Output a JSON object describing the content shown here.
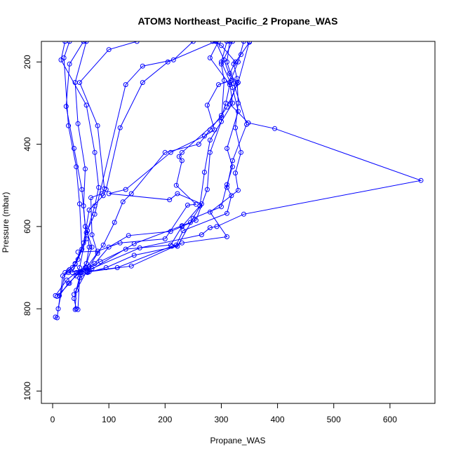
{
  "chart_data": {
    "type": "line",
    "title": "ATOM3 Northeast_Pacific_2 Propane_WAS",
    "xlabel": "Propane_WAS",
    "ylabel": "Pressure (mbar)",
    "xlim": [
      -20,
      680
    ],
    "ylim": [
      1030,
      150
    ],
    "y_reversed": true,
    "x_ticks": [
      0,
      100,
      200,
      300,
      400,
      500,
      600
    ],
    "y_ticks": [
      200,
      400,
      600,
      800,
      1000
    ],
    "grid": false,
    "legend": "none",
    "colors": {
      "series": "#0000ff",
      "axes": "#000000"
    },
    "series": [
      {
        "points": [
          [
            5,
            820
          ],
          [
            8,
            822
          ],
          [
            18,
            720
          ],
          [
            28,
            708
          ],
          [
            35,
            700
          ],
          [
            45,
            680
          ],
          [
            60,
            630
          ],
          [
            55,
            550
          ],
          [
            58,
            460
          ],
          [
            45,
            350
          ],
          [
            40,
            250
          ],
          [
            60,
            150
          ]
        ]
      },
      {
        "points": [
          [
            10,
            800
          ],
          [
            22,
            712
          ],
          [
            30,
            705
          ],
          [
            40,
            692
          ],
          [
            52,
            655
          ],
          [
            48,
            545
          ],
          [
            42,
            455
          ],
          [
            28,
            355
          ],
          [
            20,
            190
          ],
          [
            30,
            150
          ]
        ]
      },
      {
        "points": [
          [
            5,
            768
          ],
          [
            25,
            730
          ],
          [
            42,
            712
          ],
          [
            58,
            700
          ],
          [
            70,
            650
          ],
          [
            58,
            600
          ],
          [
            52,
            510
          ],
          [
            38,
            410
          ],
          [
            24,
            308
          ],
          [
            30,
            205
          ],
          [
            55,
            150
          ]
        ]
      },
      {
        "points": [
          [
            12,
            768
          ],
          [
            28,
            738
          ],
          [
            48,
            712
          ],
          [
            60,
            690
          ],
          [
            65,
            650
          ],
          [
            62,
            610
          ],
          [
            75,
            550
          ],
          [
            82,
            505
          ],
          [
            75,
            420
          ],
          [
            60,
            305
          ],
          [
            15,
            195
          ],
          [
            22,
            150
          ]
        ]
      },
      {
        "points": [
          [
            8,
            770
          ],
          [
            30,
            738
          ],
          [
            45,
            712
          ],
          [
            65,
            698
          ],
          [
            80,
            665
          ],
          [
            70,
            620
          ],
          [
            68,
            530
          ],
          [
            88,
            520
          ],
          [
            92,
            508
          ],
          [
            80,
            355
          ],
          [
            48,
            250
          ],
          [
            100,
            170
          ],
          [
            150,
            150
          ]
        ]
      },
      {
        "points": [
          [
            40,
            802
          ],
          [
            42,
            755
          ],
          [
            50,
            710
          ],
          [
            75,
            690
          ],
          [
            100,
            650
          ],
          [
            135,
            622
          ],
          [
            210,
            612
          ],
          [
            255,
            585
          ],
          [
            275,
            510
          ],
          [
            280,
            420
          ],
          [
            300,
            345
          ],
          [
            305,
            245
          ],
          [
            300,
            205
          ],
          [
            320,
            150
          ]
        ]
      },
      {
        "points": [
          [
            42,
            800
          ],
          [
            38,
            775
          ],
          [
            52,
            712
          ],
          [
            85,
            685
          ],
          [
            130,
            655
          ],
          [
            210,
            645
          ],
          [
            230,
            600
          ],
          [
            262,
            550
          ],
          [
            270,
            468
          ],
          [
            280,
            390
          ],
          [
            320,
            300
          ],
          [
            315,
            250
          ],
          [
            330,
            200
          ],
          [
            340,
            150
          ]
        ]
      },
      {
        "points": [
          [
            45,
            802
          ],
          [
            48,
            725
          ],
          [
            62,
            712
          ],
          [
            95,
            700
          ],
          [
            145,
            670
          ],
          [
            222,
            648
          ],
          [
            250,
            580
          ],
          [
            300,
            552
          ],
          [
            310,
            498
          ],
          [
            320,
            455
          ],
          [
            310,
            410
          ],
          [
            330,
            320
          ],
          [
            320,
            262
          ],
          [
            300,
            200
          ],
          [
            310,
            150
          ]
        ]
      },
      {
        "points": [
          [
            38,
            765
          ],
          [
            60,
            710
          ],
          [
            115,
            700
          ],
          [
            212,
            648
          ],
          [
            220,
            645
          ],
          [
            232,
            610
          ],
          [
            310,
            568
          ],
          [
            318,
            525
          ],
          [
            310,
            505
          ],
          [
            320,
            440
          ],
          [
            345,
            352
          ],
          [
            322,
            252
          ],
          [
            310,
            200
          ],
          [
            315,
            150
          ]
        ]
      },
      {
        "points": [
          [
            65,
            710
          ],
          [
            140,
            696
          ],
          [
            230,
            640
          ],
          [
            310,
            625
          ],
          [
            280,
            565
          ],
          [
            330,
            512
          ],
          [
            325,
            470
          ],
          [
            335,
            420
          ],
          [
            325,
            360
          ],
          [
            330,
            300
          ],
          [
            328,
            240
          ],
          [
            322,
            205
          ],
          [
            335,
            182
          ],
          [
            350,
            152
          ]
        ]
      },
      {
        "points": [
          [
            28,
            712
          ],
          [
            70,
            702
          ],
          [
            155,
            652
          ],
          [
            265,
            620
          ],
          [
            280,
            603
          ],
          [
            292,
            600
          ],
          [
            340,
            570
          ],
          [
            655,
            488
          ],
          [
            395,
            362
          ],
          [
            348,
            348
          ],
          [
            315,
            302
          ],
          [
            328,
            252
          ],
          [
            315,
            228
          ],
          [
            325,
            200
          ],
          [
            300,
            160
          ],
          [
            285,
            150
          ]
        ]
      },
      {
        "points": [
          [
            62,
            710
          ],
          [
            145,
            642
          ],
          [
            230,
            598
          ],
          [
            245,
            590
          ],
          [
            265,
            545
          ],
          [
            222,
            520
          ],
          [
            208,
            535
          ],
          [
            100,
            520
          ],
          [
            130,
            510
          ],
          [
            210,
            420
          ],
          [
            270,
            380
          ],
          [
            288,
            365
          ],
          [
            275,
            305
          ],
          [
            295,
            255
          ],
          [
            318,
            245
          ],
          [
            305,
            195
          ],
          [
            290,
            150
          ]
        ]
      },
      {
        "points": [
          [
            45,
            662
          ],
          [
            80,
            660
          ],
          [
            120,
            640
          ],
          [
            200,
            630
          ],
          [
            240,
            548
          ],
          [
            255,
            546
          ],
          [
            220,
            500
          ],
          [
            230,
            440
          ],
          [
            225,
            430
          ],
          [
            230,
            420
          ],
          [
            300,
            335
          ],
          [
            308,
            300
          ],
          [
            315,
            255
          ],
          [
            280,
            190
          ],
          [
            295,
            150
          ]
        ]
      },
      {
        "points": [
          [
            50,
            712
          ],
          [
            60,
            700
          ],
          [
            90,
            645
          ],
          [
            110,
            590
          ],
          [
            125,
            540
          ],
          [
            140,
            520
          ],
          [
            200,
            420
          ],
          [
            260,
            400
          ],
          [
            280,
            365
          ],
          [
            300,
            330
          ],
          [
            310,
            310
          ],
          [
            330,
            250
          ],
          [
            350,
            150
          ]
        ]
      },
      {
        "points": [
          [
            42,
            720
          ],
          [
            48,
            700
          ],
          [
            60,
            615
          ],
          [
            75,
            570
          ],
          [
            130,
            255
          ],
          [
            160,
            210
          ],
          [
            215,
            195
          ],
          [
            250,
            150
          ]
        ]
      },
      {
        "points": [
          [
            35,
            712
          ],
          [
            40,
            690
          ],
          [
            55,
            640
          ],
          [
            65,
            560
          ],
          [
            90,
            525
          ],
          [
            95,
            510
          ],
          [
            120,
            360
          ],
          [
            160,
            250
          ],
          [
            205,
            200
          ],
          [
            290,
            150
          ]
        ]
      }
    ]
  }
}
